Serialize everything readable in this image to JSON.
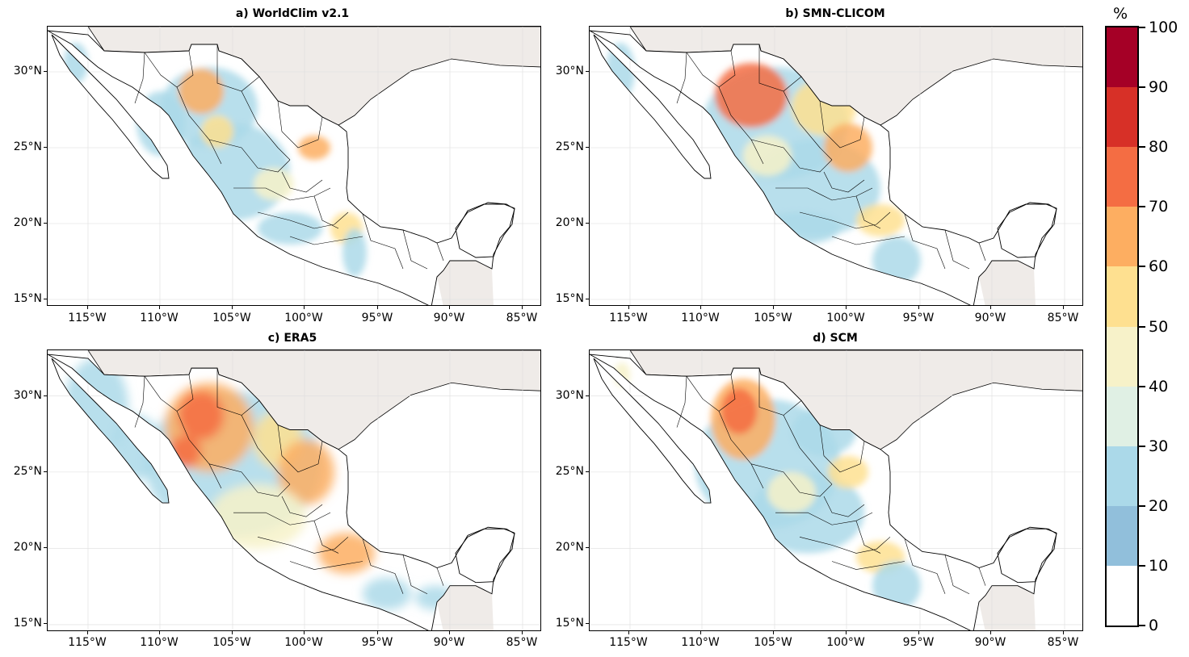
{
  "panels": [
    {
      "id": "a",
      "title": "a) WorldClim v2.1"
    },
    {
      "id": "b",
      "title": "b) SMN-CLICOM"
    },
    {
      "id": "c",
      "title": "c) ERA5"
    },
    {
      "id": "d",
      "title": "d) SCM"
    }
  ],
  "axes": {
    "lat_labels": [
      "30°N",
      "25°N",
      "20°N",
      "15°N"
    ],
    "lon_labels": [
      "115°W",
      "110°W",
      "105°W",
      "100°W",
      "95°W",
      "90°W",
      "85°W"
    ]
  },
  "colorbar": {
    "unit": "%",
    "labels": [
      "100",
      "90",
      "80",
      "70",
      "60",
      "50",
      "40",
      "30",
      "20",
      "10",
      "0"
    ],
    "colors": [
      "#a50026",
      "#d73027",
      "#f46d43",
      "#fdae61",
      "#fee090",
      "#f7f2c9",
      "#e0f0e4",
      "#abd9e9",
      "#91bfdb",
      "#ffffff"
    ]
  },
  "colors": {
    "land": "#ffffff",
    "ocean_other": "#efebe8",
    "border": "#000000"
  }
}
